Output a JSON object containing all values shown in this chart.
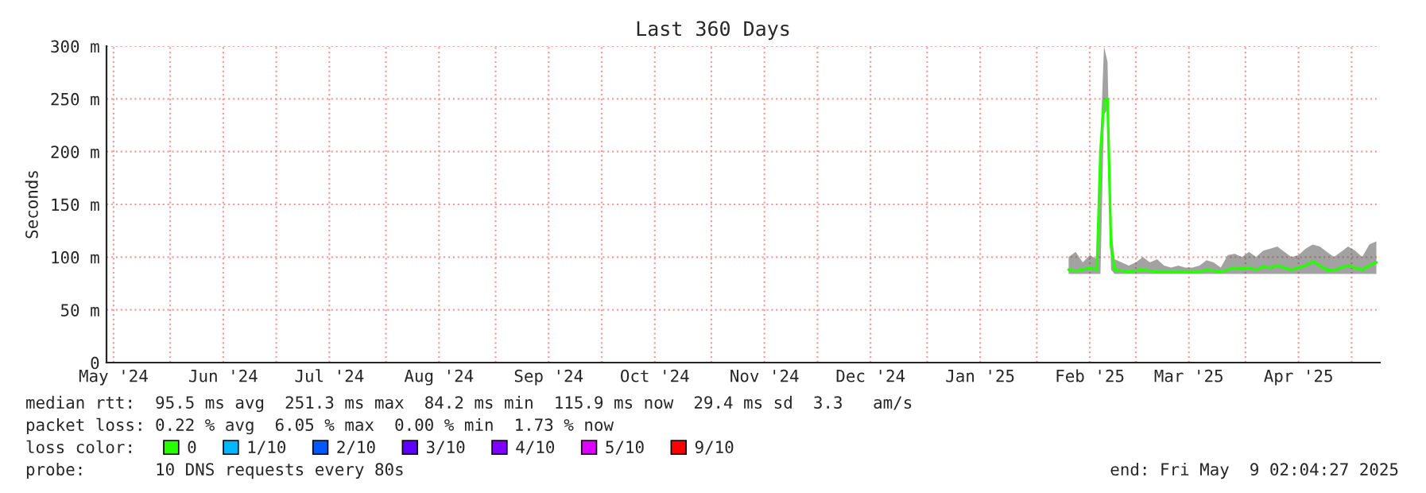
{
  "chart_data": {
    "type": "line",
    "title": "Last 360 Days",
    "ylabel": "Seconds",
    "x": [
      "2025-02-10",
      "2025-02-12",
      "2025-02-14",
      "2025-02-16",
      "2025-02-18",
      "2025-02-19",
      "2025-02-20",
      "2025-02-21",
      "2025-02-22",
      "2025-02-23",
      "2025-02-25",
      "2025-02-27",
      "2025-03-01",
      "2025-03-03",
      "2025-03-05",
      "2025-03-07",
      "2025-03-09",
      "2025-03-11",
      "2025-03-13",
      "2025-03-15",
      "2025-03-17",
      "2025-03-19",
      "2025-03-21",
      "2025-03-23",
      "2025-03-25",
      "2025-03-27",
      "2025-03-29",
      "2025-03-31",
      "2025-04-02",
      "2025-04-04",
      "2025-04-06",
      "2025-04-08",
      "2025-04-10",
      "2025-04-12",
      "2025-04-14",
      "2025-04-16",
      "2025-04-18",
      "2025-04-20",
      "2025-04-22",
      "2025-04-24",
      "2025-04-26",
      "2025-04-28",
      "2025-04-30",
      "2025-05-02",
      "2025-05-04",
      "2025-05-06",
      "2025-05-08"
    ],
    "series": [
      {
        "name": "0",
        "color": "#26ff00",
        "values": [
          88,
          87,
          88,
          90,
          88,
          200,
          248,
          250,
          110,
          88,
          87,
          86,
          87,
          88,
          87,
          86,
          86,
          86,
          86,
          86,
          86,
          86,
          88,
          87,
          86,
          88,
          90,
          89,
          90,
          88,
          91,
          90,
          92,
          90,
          88,
          90,
          92,
          96,
          92,
          88,
          87,
          90,
          92,
          90,
          88,
          92,
          95
        ],
        "lower": [
          84,
          84,
          84,
          84,
          84,
          84,
          235,
          240,
          88,
          84,
          84,
          84,
          84,
          84,
          84,
          84,
          84,
          84,
          84,
          84,
          84,
          84,
          84,
          84,
          84,
          84,
          84,
          84,
          84,
          84,
          84,
          84,
          84,
          84,
          84,
          84,
          84,
          84,
          84,
          84,
          84,
          84,
          84,
          84,
          84,
          84,
          84
        ],
        "upper": [
          100,
          105,
          95,
          102,
          98,
          210,
          300,
          285,
          130,
          98,
          95,
          92,
          95,
          100,
          95,
          98,
          92,
          90,
          92,
          90,
          90,
          92,
          97,
          95,
          90,
          102,
          103,
          100,
          105,
          100,
          106,
          108,
          110,
          105,
          100,
          102,
          108,
          112,
          110,
          105,
          100,
          105,
          110,
          106,
          100,
          112,
          115
        ]
      },
      {
        "name": "1/10",
        "color": "#00b8ff",
        "values": [
          null,
          null,
          null,
          null,
          null,
          null,
          null,
          null,
          null,
          null,
          null,
          null,
          null,
          null,
          null,
          null,
          null,
          null,
          null,
          null,
          null,
          null,
          null,
          null,
          null,
          null,
          null,
          null,
          null,
          null,
          null,
          null,
          null,
          null,
          null,
          null,
          null,
          null,
          null,
          null,
          null,
          null,
          null,
          null,
          null,
          null,
          null
        ]
      },
      {
        "name": "2/10",
        "color": "#0059ff",
        "values": [
          null,
          null,
          null,
          null,
          null,
          null,
          null,
          null,
          null,
          null,
          null,
          null,
          null,
          null,
          null,
          null,
          null,
          null,
          null,
          null,
          null,
          null,
          null,
          null,
          null,
          null,
          null,
          null,
          null,
          null,
          null,
          null,
          null,
          null,
          null,
          null,
          null,
          null,
          null,
          null,
          null,
          null,
          null,
          null,
          null,
          null,
          null
        ]
      },
      {
        "name": "3/10",
        "color": "#5e00ff",
        "values": [
          null,
          null,
          null,
          null,
          null,
          null,
          null,
          null,
          null,
          null,
          null,
          null,
          null,
          null,
          null,
          null,
          null,
          null,
          null,
          null,
          null,
          null,
          null,
          null,
          null,
          null,
          null,
          null,
          null,
          null,
          null,
          null,
          null,
          null,
          null,
          null,
          null,
          null,
          null,
          null,
          null,
          null,
          null,
          null,
          null,
          null,
          null
        ]
      },
      {
        "name": "4/10",
        "color": "#7e00ff",
        "values": [
          null,
          null,
          null,
          null,
          null,
          null,
          null,
          null,
          null,
          null,
          null,
          null,
          null,
          null,
          null,
          null,
          null,
          null,
          null,
          null,
          null,
          null,
          null,
          null,
          null,
          null,
          null,
          null,
          null,
          null,
          null,
          null,
          null,
          null,
          null,
          null,
          null,
          null,
          null,
          null,
          null,
          null,
          null,
          null,
          null,
          null,
          null
        ]
      },
      {
        "name": "5/10",
        "color": "#dd00ff",
        "values": [
          null,
          null,
          null,
          null,
          null,
          null,
          null,
          null,
          null,
          null,
          null,
          null,
          null,
          null,
          null,
          null,
          null,
          null,
          null,
          null,
          null,
          null,
          null,
          null,
          null,
          null,
          null,
          null,
          null,
          null,
          null,
          null,
          null,
          null,
          null,
          null,
          null,
          null,
          null,
          null,
          null,
          null,
          null,
          null,
          null,
          null,
          null
        ]
      },
      {
        "name": "9/10",
        "color": "#ff0000",
        "values": [
          null,
          null,
          null,
          null,
          null,
          null,
          null,
          null,
          null,
          null,
          null,
          null,
          null,
          null,
          null,
          null,
          null,
          null,
          null,
          null,
          null,
          null,
          null,
          null,
          null,
          null,
          null,
          null,
          null,
          null,
          null,
          null,
          null,
          null,
          null,
          null,
          null,
          null,
          null,
          null,
          null,
          null,
          null,
          null,
          null,
          null,
          null
        ]
      }
    ],
    "xlim": [
      "2024-05-14",
      "2025-05-09"
    ],
    "xticks": [
      {
        "value": "2024-05-16",
        "label": "May '24"
      },
      {
        "value": "2024-06-01",
        "label": null
      },
      {
        "value": "2024-06-16",
        "label": "Jun '24"
      },
      {
        "value": "2024-07-01",
        "label": null
      },
      {
        "value": "2024-07-16",
        "label": "Jul '24"
      },
      {
        "value": "2024-08-01",
        "label": null
      },
      {
        "value": "2024-08-16",
        "label": "Aug '24"
      },
      {
        "value": "2024-09-01",
        "label": null
      },
      {
        "value": "2024-09-16",
        "label": "Sep '24"
      },
      {
        "value": "2024-10-01",
        "label": null
      },
      {
        "value": "2024-10-16",
        "label": "Oct '24"
      },
      {
        "value": "2024-11-01",
        "label": null
      },
      {
        "value": "2024-11-16",
        "label": "Nov '24"
      },
      {
        "value": "2024-12-01",
        "label": null
      },
      {
        "value": "2024-12-16",
        "label": "Dec '24"
      },
      {
        "value": "2025-01-01",
        "label": null
      },
      {
        "value": "2025-01-16",
        "label": "Jan '25"
      },
      {
        "value": "2025-02-01",
        "label": null
      },
      {
        "value": "2025-02-16",
        "label": "Feb '25"
      },
      {
        "value": "2025-03-01",
        "label": null
      },
      {
        "value": "2025-03-16",
        "label": "Mar '25"
      },
      {
        "value": "2025-04-01",
        "label": null
      },
      {
        "value": "2025-04-16",
        "label": "Apr '25"
      },
      {
        "value": "2025-05-01",
        "label": null
      }
    ],
    "ylim": [
      0,
      300
    ],
    "yticks": [
      0,
      {
        "value": 50,
        "label": "50 m"
      },
      {
        "value": 100,
        "label": "100 m"
      },
      {
        "value": 150,
        "label": "150 m"
      },
      {
        "value": 200,
        "label": "200 m"
      },
      {
        "value": 250,
        "label": "250 m"
      },
      {
        "value": 300,
        "label": "300 m"
      }
    ],
    "grid": true,
    "legend": "bottom",
    "legend_title": "loss color:",
    "marker": "none",
    "line_style": "solid",
    "annotations": [
      "median rtt:  95.5 ms avg  251.3 ms max  84.2 ms min  115.9 ms now  29.4 ms sd  3.3   am/s",
      "packet loss: 0.22 % avg  6.05 % max  0.00 % min  1.73 % now",
      "probe:       10 DNS requests every 80s",
      "end: Fri May  9 02:04:27 2025"
    ]
  }
}
